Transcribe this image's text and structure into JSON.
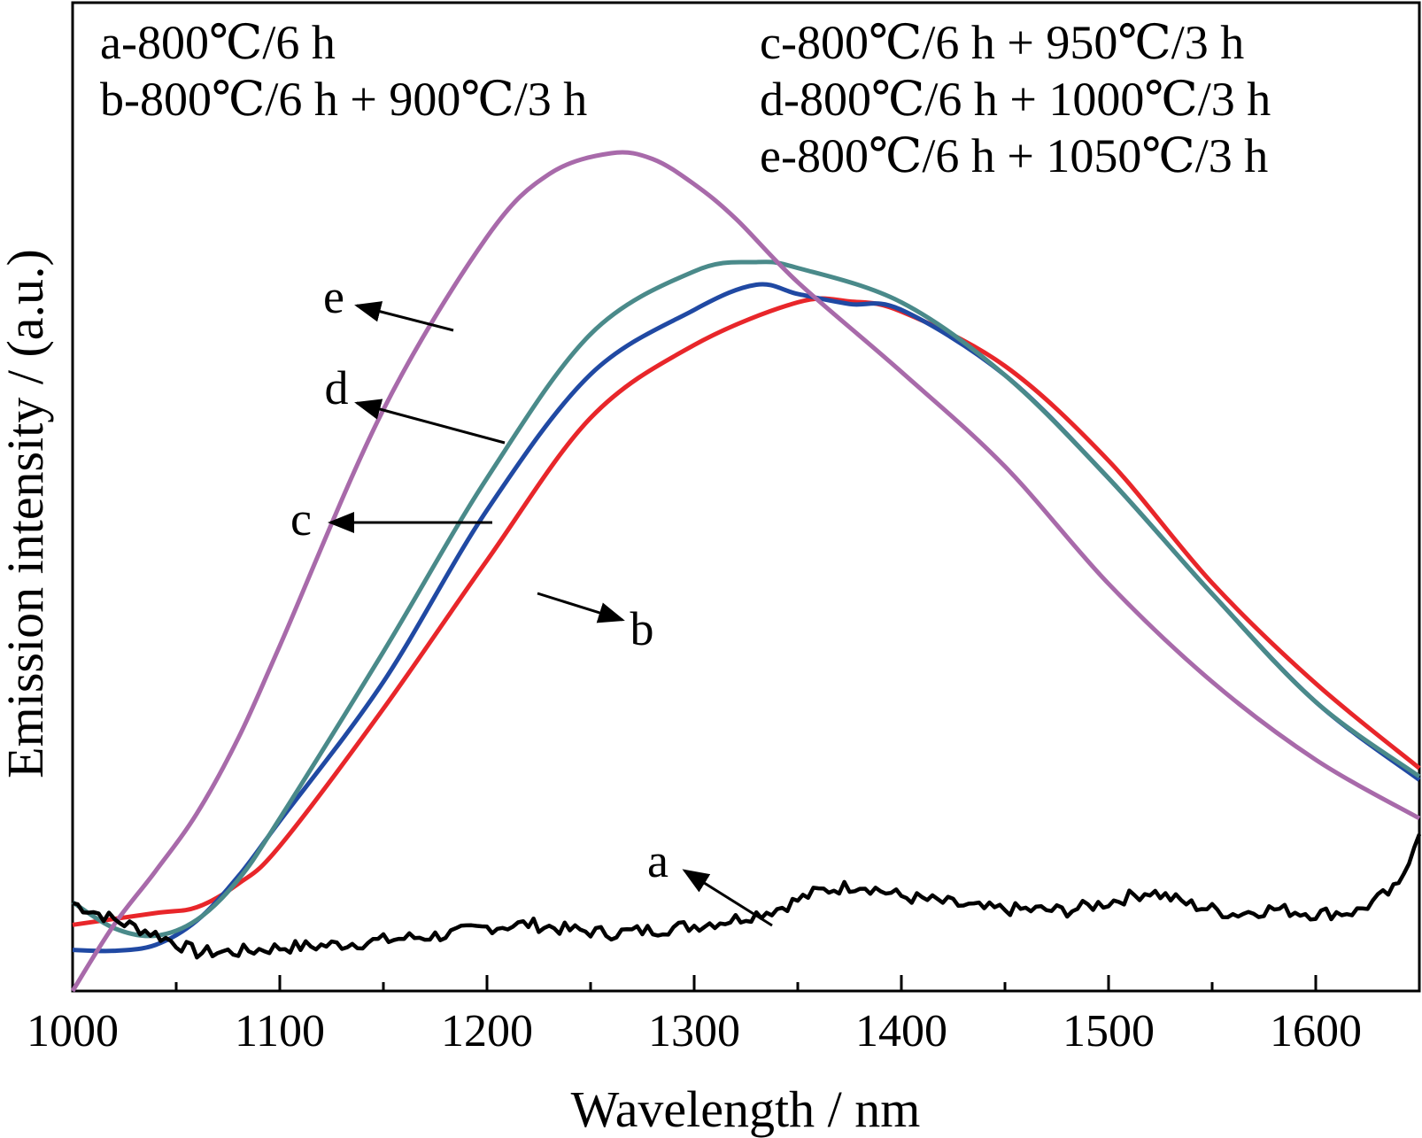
{
  "chart_data": {
    "type": "line",
    "title": "",
    "xlabel": "Wavelength / nm",
    "ylabel": "Emission intensity / (a.u.)",
    "xlim": [
      1000,
      1650
    ],
    "ylim": [
      0,
      100
    ],
    "x_ticks": [
      1000,
      1100,
      1200,
      1300,
      1400,
      1500,
      1600
    ],
    "x_tick_labels": [
      "1000",
      "1100",
      "1200",
      "1300",
      "1400",
      "1500",
      "1600"
    ],
    "y_ticks_shown": false,
    "grid": false,
    "legend": [
      "a-800℃/6 h",
      "b-800℃/6 h + 900℃/3 h",
      "c-800℃/6 h + 950℃/3 h",
      "d-800℃/6 h + 1000℃/3 h",
      "e-800℃/6 h + 1050℃/3 h"
    ],
    "series": [
      {
        "label": "a",
        "color": "#000000",
        "noisy": true,
        "x": [
          1000,
          1020,
          1040,
          1060,
          1080,
          1100,
          1120,
          1140,
          1160,
          1180,
          1200,
          1220,
          1240,
          1260,
          1280,
          1300,
          1320,
          1340,
          1360,
          1380,
          1400,
          1420,
          1440,
          1460,
          1480,
          1500,
          1520,
          1540,
          1560,
          1580,
          1600,
          1620,
          1640,
          1650
        ],
        "y": [
          10.5,
          8.5,
          6.8,
          4.6,
          4.7,
          5.2,
          5.4,
          5.8,
          6.3,
          6.7,
          7.6,
          8.0,
          7.3,
          6.9,
          7.3,
          7.8,
          8.6,
          9.8,
          11.9,
          12.7,
          11.3,
          10.6,
          9.8,
          9.7,
          9.6,
          10.6,
          11.9,
          10.3,
          9.2,
          9.8,
          9.2,
          9.5,
          12.4,
          19.3
        ]
      },
      {
        "label": "b",
        "color": "#e8262a",
        "x": [
          1000,
          1040,
          1060,
          1080,
          1100,
          1150,
          1200,
          1250,
          1300,
          1350,
          1375,
          1400,
          1450,
          1500,
          1550,
          1600,
          1650
        ],
        "y": [
          7.9,
          9.3,
          10.0,
          12.8,
          17.3,
          33.7,
          51.4,
          68.4,
          77.1,
          82.2,
          82.3,
          81.1,
          74.6,
          63.3,
          48.7,
          36.7,
          26.6
        ]
      },
      {
        "label": "c",
        "color": "#4a8a8a",
        "x": [
          1000,
          1020,
          1040,
          1060,
          1080,
          1100,
          1150,
          1200,
          1250,
          1300,
          1330,
          1350,
          1400,
          1450,
          1500,
          1550,
          1600,
          1650
        ],
        "y": [
          10.6,
          7.5,
          6.6,
          8.5,
          13.3,
          20.6,
          40.5,
          61.2,
          78.4,
          85.9,
          87.0,
          86.3,
          82.2,
          73.5,
          61.2,
          47.4,
          34.5,
          25.6
        ]
      },
      {
        "label": "d",
        "color": "#2049a3",
        "x": [
          1000,
          1020,
          1040,
          1060,
          1080,
          1100,
          1150,
          1200,
          1250,
          1300,
          1330,
          1350,
          1375,
          1400,
          1450,
          1500,
          1550,
          1600,
          1650
        ],
        "y": [
          4.9,
          4.8,
          5.5,
          8.4,
          13.7,
          20.3,
          36.9,
          57.4,
          73.6,
          81.3,
          84.3,
          83.2,
          82.0,
          81.3,
          73.5,
          61.2,
          47.4,
          34.5,
          25.2
        ]
      },
      {
        "label": "e",
        "color": "#a86aaa",
        "x": [
          1000,
          1020,
          1040,
          1060,
          1080,
          1100,
          1150,
          1200,
          1230,
          1260,
          1280,
          1300,
          1320,
          1350,
          1400,
          1450,
          1500,
          1550,
          1600,
          1650
        ],
        "y": [
          0,
          7.9,
          14.3,
          21.2,
          30.2,
          41.2,
          69.4,
          90.0,
          97.5,
          100,
          99.3,
          96.3,
          92.2,
          84.6,
          73.9,
          62.6,
          48.6,
          36.9,
          27.6,
          20.6
        ]
      }
    ],
    "annotations": [
      {
        "text": "a",
        "points_to_x": 1350,
        "points_to_y": 9.2
      },
      {
        "text": "b",
        "points_to_x": 1222,
        "points_to_y": 55.0
      },
      {
        "text": "c",
        "points_to_x": 1198,
        "points_to_y": 59.0
      },
      {
        "text": "d",
        "points_to_x": 1195,
        "points_to_y": 70.0
      },
      {
        "text": "e",
        "points_to_x": 1185,
        "points_to_y": 85.0
      }
    ]
  }
}
